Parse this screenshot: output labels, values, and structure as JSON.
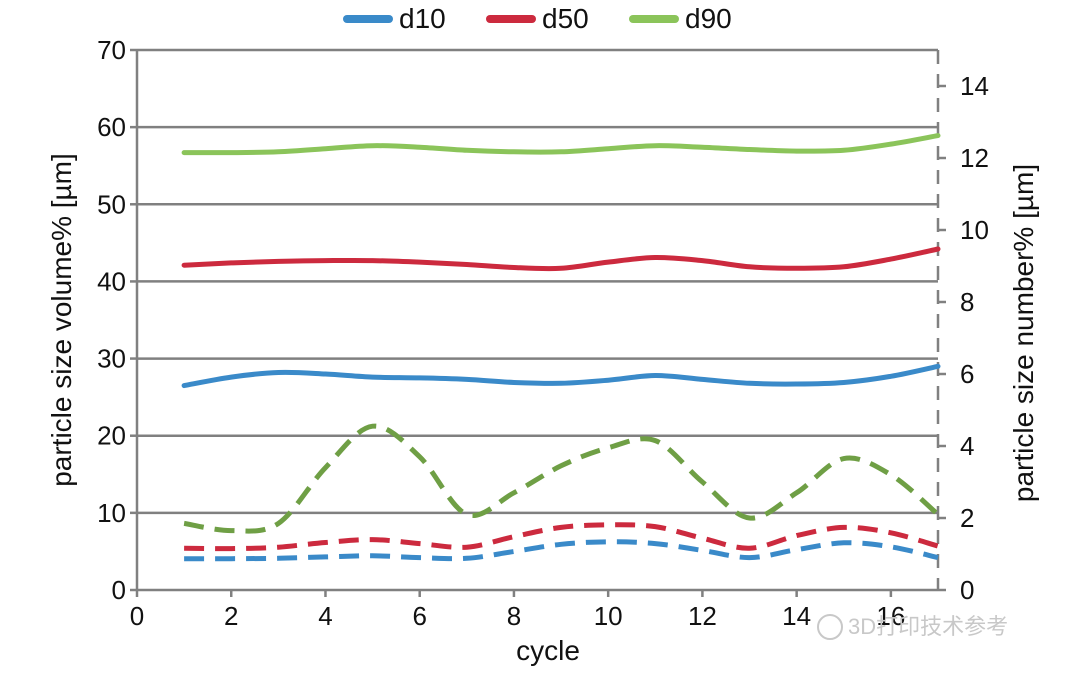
{
  "chart_data": {
    "type": "line",
    "x_axis": {
      "label": "cycle",
      "range": [
        0,
        17
      ],
      "ticks": [
        0,
        2,
        4,
        6,
        8,
        10,
        12,
        14,
        16
      ]
    },
    "y_left": {
      "label": "particle size volume% [µm]",
      "range": [
        0,
        70
      ],
      "ticks": [
        0,
        10,
        20,
        30,
        40,
        50,
        60,
        70
      ]
    },
    "y_right": {
      "label": "particle size number% [µm]",
      "range": [
        0,
        15
      ],
      "ticks": [
        0,
        2,
        4,
        6,
        8,
        10,
        12,
        14
      ]
    },
    "grid": "horizontal",
    "legend": {
      "placement": "top",
      "entries": [
        "d10",
        "d50",
        "d90"
      ]
    },
    "series": [
      {
        "name": "d10",
        "axis": "left",
        "style": "solid",
        "color": "#3a8ac9",
        "x": [
          1,
          2,
          3,
          4,
          5,
          6,
          7,
          8,
          9,
          10,
          11,
          12,
          13,
          14,
          15,
          16,
          17
        ],
        "y": [
          26.5,
          27.6,
          28.2,
          28.0,
          27.6,
          27.5,
          27.3,
          26.9,
          26.8,
          27.2,
          27.8,
          27.3,
          26.8,
          26.7,
          26.9,
          27.7,
          29.0
        ]
      },
      {
        "name": "d50",
        "axis": "left",
        "style": "solid",
        "color": "#cc2a3e",
        "x": [
          1,
          2,
          3,
          4,
          5,
          6,
          7,
          8,
          9,
          10,
          11,
          12,
          13,
          14,
          15,
          16,
          17
        ],
        "y": [
          42.1,
          42.4,
          42.6,
          42.7,
          42.7,
          42.5,
          42.2,
          41.8,
          41.7,
          42.5,
          43.1,
          42.7,
          41.9,
          41.7,
          41.9,
          42.9,
          44.2
        ]
      },
      {
        "name": "d90",
        "axis": "left",
        "style": "solid",
        "color": "#8bc45a",
        "x": [
          1,
          2,
          3,
          4,
          5,
          6,
          7,
          8,
          9,
          10,
          11,
          12,
          13,
          14,
          15,
          16,
          17
        ],
        "y": [
          56.7,
          56.7,
          56.8,
          57.2,
          57.6,
          57.4,
          57.0,
          56.8,
          56.8,
          57.2,
          57.6,
          57.4,
          57.1,
          56.9,
          57.0,
          57.8,
          58.9
        ]
      },
      {
        "name": "d10",
        "axis": "right",
        "style": "dashed",
        "color": "#3a8ac9",
        "x": [
          1,
          2,
          3,
          4,
          5,
          6,
          7,
          8,
          9,
          10,
          11,
          12,
          13,
          14,
          15,
          16,
          17
        ],
        "y": [
          0.87,
          0.87,
          0.88,
          0.92,
          0.95,
          0.9,
          0.88,
          1.07,
          1.27,
          1.34,
          1.29,
          1.1,
          0.9,
          1.12,
          1.31,
          1.2,
          0.9
        ]
      },
      {
        "name": "d50",
        "axis": "right",
        "style": "dashed",
        "color": "#cc2a3e",
        "x": [
          1,
          2,
          3,
          4,
          5,
          6,
          7,
          8,
          9,
          10,
          11,
          12,
          13,
          14,
          15,
          16,
          17
        ],
        "y": [
          1.16,
          1.15,
          1.19,
          1.32,
          1.4,
          1.29,
          1.19,
          1.48,
          1.74,
          1.81,
          1.76,
          1.44,
          1.16,
          1.51,
          1.74,
          1.59,
          1.22
        ]
      },
      {
        "name": "d90",
        "axis": "right",
        "style": "dashed",
        "color": "#6f9f45",
        "x": [
          1,
          2,
          3,
          4,
          5,
          6,
          7,
          8,
          9,
          10,
          11,
          12,
          13,
          14,
          15,
          16,
          17
        ],
        "y": [
          1.85,
          1.65,
          1.85,
          3.4,
          4.55,
          3.7,
          2.1,
          2.7,
          3.45,
          3.95,
          4.15,
          3.0,
          2.0,
          2.7,
          3.65,
          3.2,
          2.1
        ]
      }
    ]
  },
  "watermark": "3D打印技术参考"
}
